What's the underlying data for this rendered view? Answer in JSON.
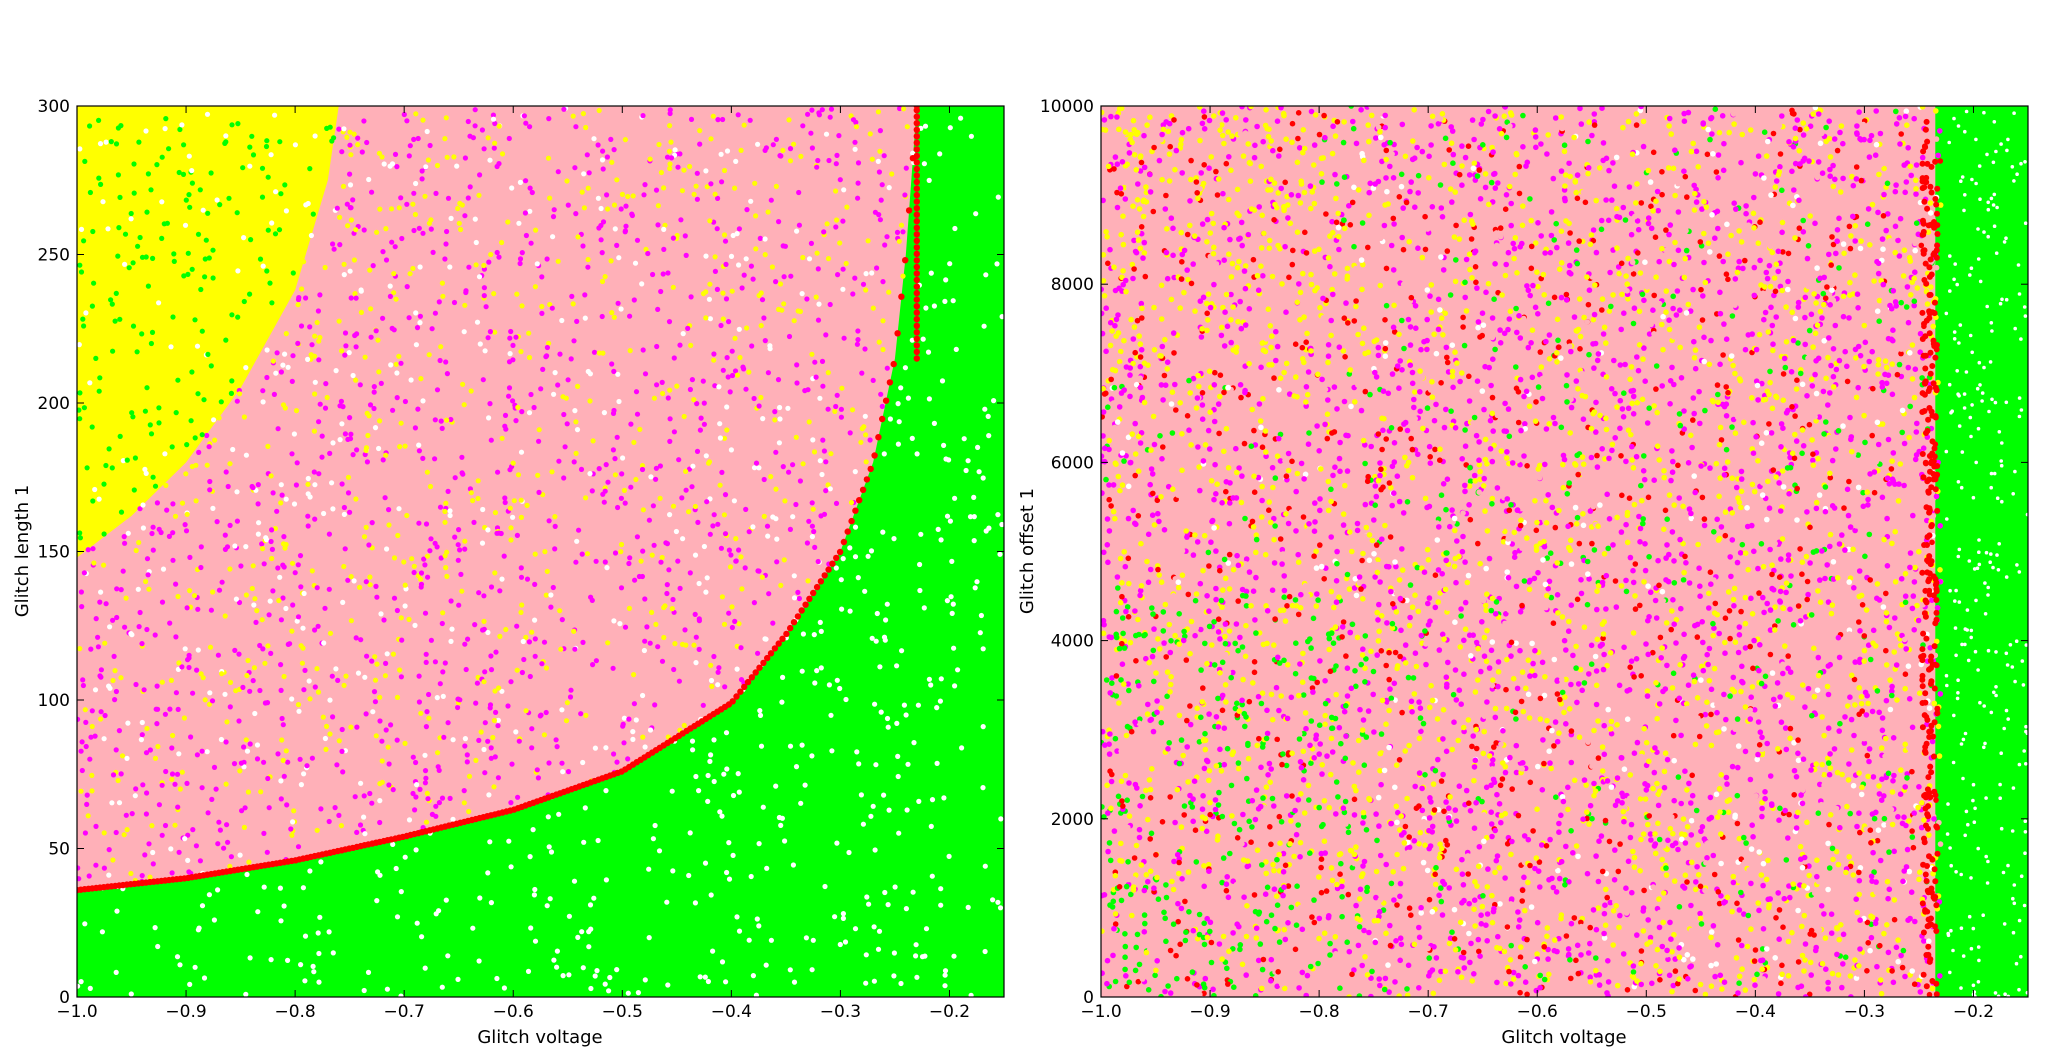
{
  "chart_data": [
    {
      "type": "scatter",
      "title": "",
      "xlabel": "Glitch voltage",
      "ylabel": "Glitch length 1",
      "xlim": [
        -1.0,
        -0.15
      ],
      "ylim": [
        0,
        300
      ],
      "xticks": [
        -1.0,
        -0.9,
        -0.8,
        -0.7,
        -0.6,
        -0.5,
        -0.4,
        -0.3,
        -0.2
      ],
      "xtick_labels": [
        "−1.0",
        "−0.9",
        "−0.8",
        "−0.7",
        "−0.6",
        "−0.5",
        "−0.4",
        "−0.3",
        "−0.2"
      ],
      "yticks": [
        0,
        50,
        100,
        150,
        200,
        250,
        300
      ],
      "ytick_labels": [
        "0",
        "50",
        "100",
        "150",
        "200",
        "250",
        "300"
      ],
      "grid": false,
      "legend": "none",
      "series_colors": {
        "green": "#00ff00",
        "red": "#ff0000",
        "pink": "#ffb0b8",
        "magenta": "#ff00ff",
        "yellow": "#ffff00"
      },
      "regions": {
        "red_boundary_curve": [
          {
            "x": -1.0,
            "y": 36
          },
          {
            "x": -0.9,
            "y": 40
          },
          {
            "x": -0.8,
            "y": 46
          },
          {
            "x": -0.7,
            "y": 54
          },
          {
            "x": -0.6,
            "y": 63
          },
          {
            "x": -0.5,
            "y": 76
          },
          {
            "x": -0.4,
            "y": 99
          },
          {
            "x": -0.35,
            "y": 122
          },
          {
            "x": -0.3,
            "y": 150
          },
          {
            "x": -0.27,
            "y": 180
          },
          {
            "x": -0.25,
            "y": 215
          },
          {
            "x": -0.24,
            "y": 250
          },
          {
            "x": -0.23,
            "y": 300
          }
        ],
        "yellow_region_boundary": [
          {
            "x": -1.0,
            "y": 148
          },
          {
            "x": -0.95,
            "y": 162
          },
          {
            "x": -0.9,
            "y": 180
          },
          {
            "x": -0.85,
            "y": 205
          },
          {
            "x": -0.8,
            "y": 238
          },
          {
            "x": -0.77,
            "y": 275
          },
          {
            "x": -0.76,
            "y": 300
          }
        ]
      }
    },
    {
      "type": "scatter",
      "title": "",
      "xlabel": "Glitch voltage",
      "ylabel": "Glitch offset 1",
      "xlim": [
        -1.0,
        -0.15
      ],
      "ylim": [
        0,
        10000
      ],
      "xticks": [
        -1.0,
        -0.9,
        -0.8,
        -0.7,
        -0.6,
        -0.5,
        -0.4,
        -0.3,
        -0.2
      ],
      "xtick_labels": [
        "−1.0",
        "−0.9",
        "−0.8",
        "−0.7",
        "−0.6",
        "−0.5",
        "−0.4",
        "−0.3",
        "−0.2"
      ],
      "yticks": [
        0,
        2000,
        4000,
        6000,
        8000,
        10000
      ],
      "ytick_labels": [
        "0",
        "2000",
        "4000",
        "6000",
        "8000",
        "10000"
      ],
      "grid": false,
      "legend": "none",
      "series_colors": {
        "green": "#00ff00",
        "red": "#ff0000",
        "pink": "#ffb0b8",
        "magenta": "#ff00ff",
        "yellow": "#ffff00"
      },
      "regions": {
        "green_threshold_x": -0.235,
        "green_mixed_below_y": 4500
      }
    }
  ]
}
